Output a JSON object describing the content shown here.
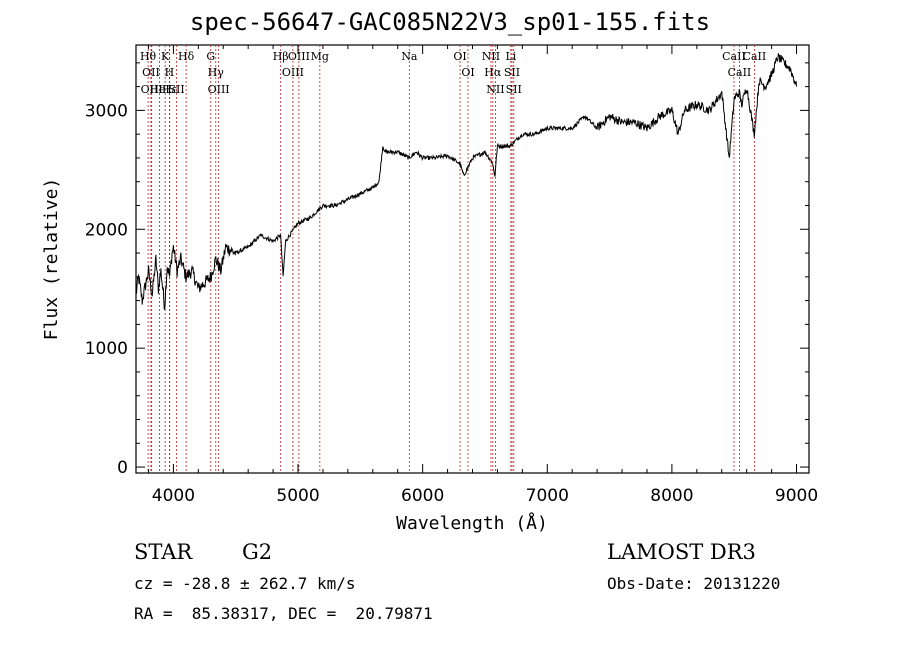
{
  "chart_data": {
    "type": "line",
    "title": "spec-56647-GAC085N22V3_sp01-155.fits",
    "xlabel": "Wavelength (Å)",
    "ylabel": "Flux (relative)",
    "xlim": [
      3700,
      9100
    ],
    "ylim": [
      -50,
      3550
    ],
    "x_ticks": [
      4000,
      5000,
      6000,
      7000,
      8000,
      9000
    ],
    "x_tick_labels": [
      "4000",
      "5000",
      "6000",
      "7000",
      "8000",
      "9000"
    ],
    "y_ticks": [
      0,
      1000,
      2000,
      3000
    ],
    "y_tick_labels": [
      "0",
      "1000",
      "2000",
      "3000"
    ],
    "grid": false,
    "series": [
      {
        "color": "#000000",
        "x": [
          3700,
          3720,
          3750,
          3780,
          3800,
          3830,
          3860,
          3880,
          3900,
          3930,
          3950,
          3970,
          3990,
          4000,
          4030,
          4060,
          4100,
          4150,
          4200,
          4250,
          4300,
          4340,
          4380,
          4420,
          4500,
          4600,
          4700,
          4800,
          4860,
          4880,
          4900,
          5000,
          5100,
          5200,
          5300,
          5400,
          5500,
          5600,
          5650,
          5680,
          5700,
          5800,
          5890,
          5950,
          6000,
          6100,
          6200,
          6300,
          6330,
          6400,
          6500,
          6560,
          6580,
          6600,
          6700,
          6800,
          6900,
          7000,
          7100,
          7200,
          7300,
          7400,
          7500,
          7600,
          7700,
          7800,
          7900,
          8000,
          8050,
          8100,
          8200,
          8300,
          8400,
          8460,
          8500,
          8540,
          8560,
          8600,
          8660,
          8700,
          8750,
          8800,
          8850,
          8900,
          8950,
          9000
        ],
        "y": [
          1450,
          1600,
          1400,
          1550,
          1650,
          1450,
          1750,
          1500,
          1650,
          1350,
          1700,
          1600,
          1800,
          1850,
          1650,
          1750,
          1600,
          1650,
          1500,
          1550,
          1600,
          1750,
          1650,
          1850,
          1800,
          1850,
          1950,
          1900,
          1950,
          1600,
          1900,
          2050,
          2100,
          2200,
          2200,
          2250,
          2300,
          2350,
          2400,
          2700,
          2650,
          2650,
          2600,
          2650,
          2600,
          2600,
          2620,
          2550,
          2450,
          2600,
          2650,
          2560,
          2450,
          2700,
          2700,
          2800,
          2800,
          2850,
          2850,
          2850,
          2950,
          2850,
          2950,
          2900,
          2900,
          2850,
          2950,
          3000,
          2800,
          3000,
          3050,
          3000,
          3150,
          2600,
          3100,
          3150,
          3050,
          3200,
          2800,
          3250,
          3200,
          3300,
          3450,
          3400,
          3350,
          3200
        ]
      }
    ],
    "lines": [
      {
        "x": 3797,
        "label": "Hθ"
      },
      {
        "x": 3820,
        "label": "OII"
      },
      {
        "x": 3826,
        "label": "OIII"
      },
      {
        "x": 3889,
        "label": "HeI"
      },
      {
        "x": 3934,
        "label": "K"
      },
      {
        "x": 3968,
        "label": "H"
      },
      {
        "x": 3970,
        "label": "Hε"
      },
      {
        "x": 4026,
        "label": "SII"
      },
      {
        "x": 4102,
        "label": "Hδ"
      },
      {
        "x": 4300,
        "label": "G"
      },
      {
        "x": 4340,
        "label": "Hγ"
      },
      {
        "x": 4363,
        "label": "OIII"
      },
      {
        "x": 4861,
        "label": "Hβ"
      },
      {
        "x": 4959,
        "label": "OIII"
      },
      {
        "x": 5007,
        "label": "OIII"
      },
      {
        "x": 5175,
        "label": "Mg"
      },
      {
        "x": 5893,
        "label": "Na"
      },
      {
        "x": 6300,
        "label": "OI"
      },
      {
        "x": 6364,
        "label": "OI"
      },
      {
        "x": 6548,
        "label": "NII"
      },
      {
        "x": 6563,
        "label": "Hα"
      },
      {
        "x": 6584,
        "label": "NII"
      },
      {
        "x": 6708,
        "label": "Li"
      },
      {
        "x": 6717,
        "label": "SII"
      },
      {
        "x": 6731,
        "label": "SII"
      },
      {
        "x": 8498,
        "label": "CaII"
      },
      {
        "x": 8542,
        "label": "CaII"
      },
      {
        "x": 8662,
        "label": "CaII"
      }
    ]
  },
  "info": {
    "class_label": "STAR",
    "subclass_label": "G2",
    "survey": "LAMOST DR3",
    "cz": "cz = -28.8 ± 262.7 km/s",
    "obs_date": "Obs-Date: 20131220",
    "coords": "RA =  85.38317, DEC =  20.79871"
  },
  "colors": {
    "axis": "#000000",
    "spectrum": "#000000",
    "line_markers": "#b22222"
  }
}
